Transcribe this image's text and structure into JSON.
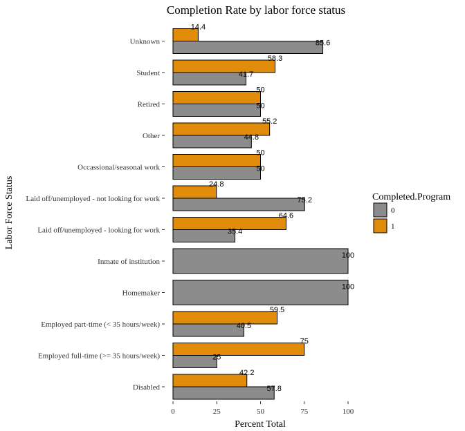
{
  "chart_data": {
    "type": "bar",
    "orientation": "horizontal",
    "title": "Completion Rate by labor force status",
    "xlabel": "Percent Total",
    "ylabel": "Labor Force Status",
    "xlim": [
      0,
      100
    ],
    "xticks": [
      0,
      25,
      50,
      75,
      100
    ],
    "grid": false,
    "legend_position": "right",
    "legend_title": "Completed.Program",
    "categories": [
      "Unknown",
      "Student",
      "Retired",
      "Other",
      "Occassional/seasonal work",
      "Laid off/unemployed - not looking for work",
      "Laid off/unemployed - looking for work",
      "Inmate of institution",
      "Homemaker",
      "Employed part-time (< 35 hours/week)",
      "Employed full-time (>= 35 hours/week)",
      "Disabled"
    ],
    "series": [
      {
        "name": "0",
        "color": "#8c8c8c",
        "values": [
          85.6,
          41.7,
          50,
          44.8,
          50,
          75.2,
          35.4,
          100,
          100,
          40.5,
          25,
          57.8
        ]
      },
      {
        "name": "1",
        "color": "#e08c0a",
        "values": [
          14.4,
          58.3,
          50,
          55.2,
          50,
          24.8,
          64.6,
          null,
          null,
          59.5,
          75,
          42.2
        ]
      }
    ],
    "data_labels": {
      "0": [
        "85.6",
        "41.7",
        "50",
        "44.8",
        "50",
        "75.2",
        "35.4",
        "100",
        "100",
        "40.5",
        "25",
        "57.8"
      ],
      "1": [
        "14.4",
        "58.3",
        "50",
        "55.2",
        "50",
        "24.8",
        "64.6",
        null,
        null,
        "59.5",
        "75",
        "42.2"
      ]
    }
  }
}
